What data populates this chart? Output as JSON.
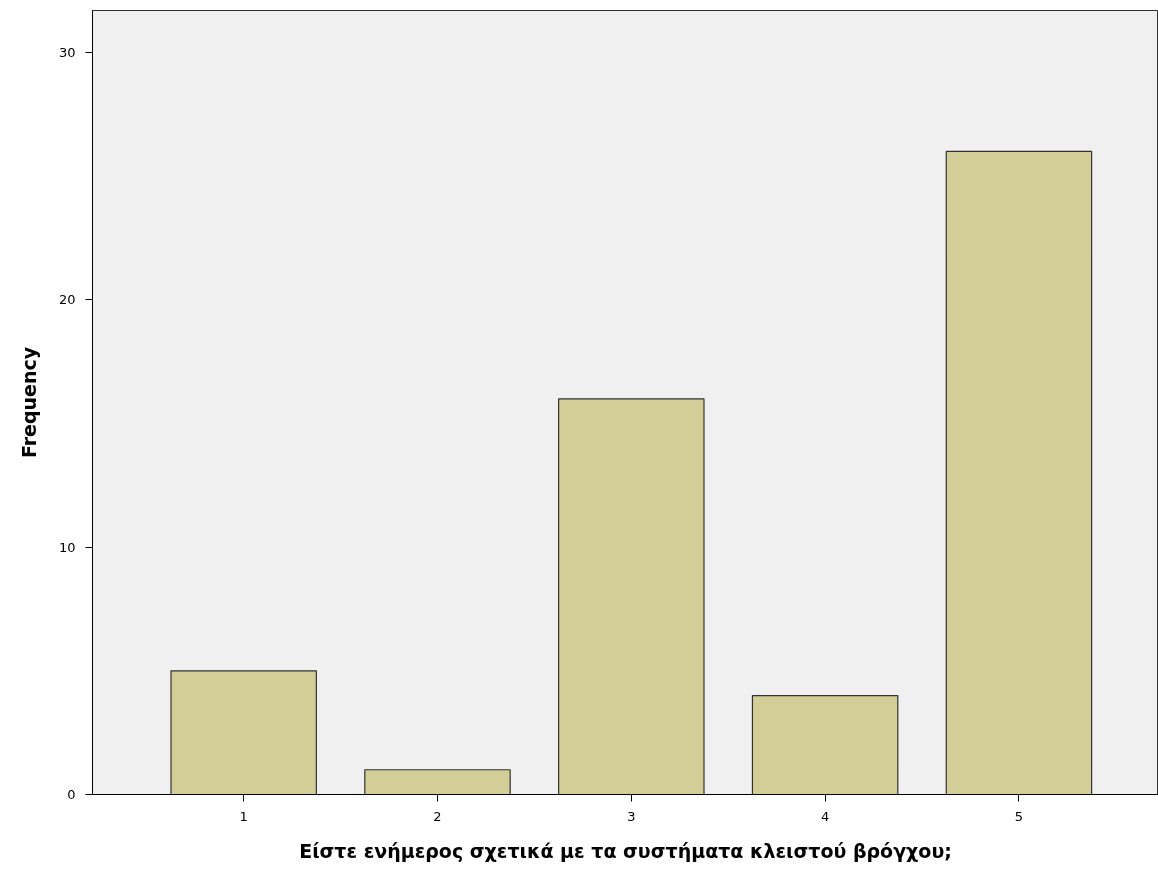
{
  "chart_data": {
    "type": "bar",
    "xlabel": "Είστε ενήμερος σχετικά με τα συστήματα κλειστού βρόγχου;",
    "ylabel": "Frequency",
    "categories": [
      "1",
      "2",
      "3",
      "4",
      "5"
    ],
    "values": [
      5,
      1,
      16,
      4,
      26
    ],
    "color": "#d3ce97",
    "ylim": [
      0,
      31.7
    ],
    "yticks": [
      0,
      10,
      20,
      30
    ],
    "grid": false
  }
}
